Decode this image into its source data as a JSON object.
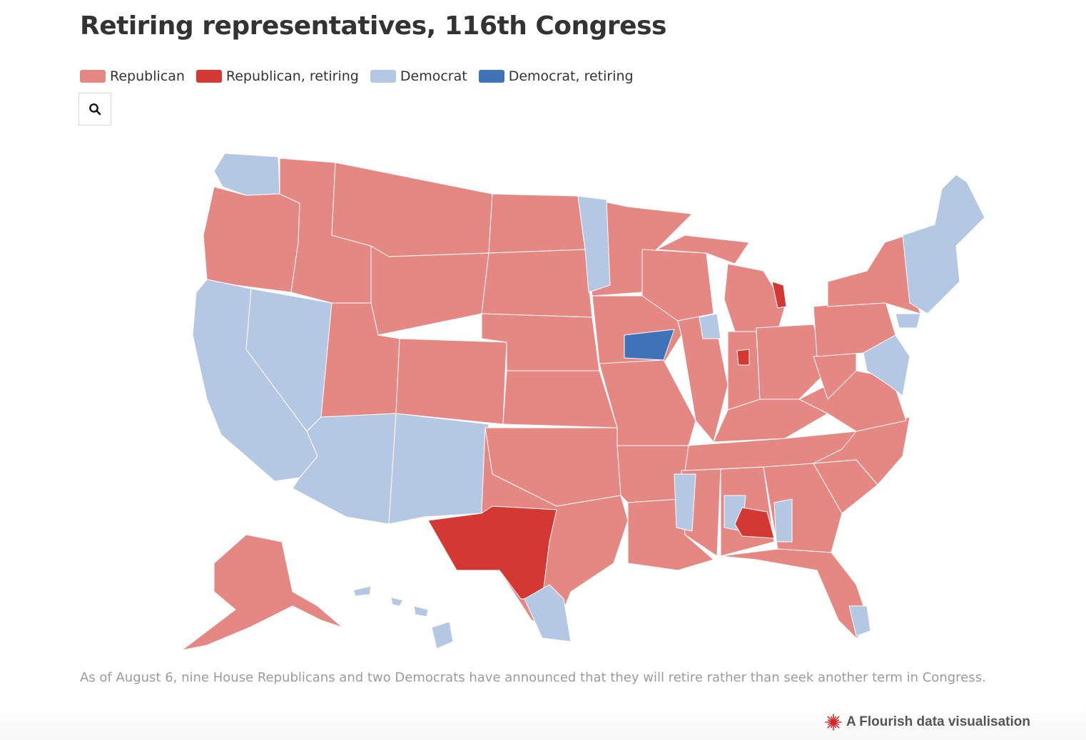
{
  "title": "Retiring representatives, 116th Congress",
  "legend": [
    {
      "label": "Republican",
      "color": "#e58782"
    },
    {
      "label": "Republican, retiring",
      "color": "#d43833"
    },
    {
      "label": "Democrat",
      "color": "#b4c7e3"
    },
    {
      "label": "Democrat, retiring",
      "color": "#3f73b8"
    }
  ],
  "search": {
    "icon": "search-icon"
  },
  "map": {
    "projection": "albers-usa",
    "regions": [
      {
        "name": "washington",
        "category": "Democrat"
      },
      {
        "name": "oregon",
        "category": "Republican"
      },
      {
        "name": "california",
        "category": "Democrat"
      },
      {
        "name": "nevada",
        "category": "Democrat"
      },
      {
        "name": "idaho",
        "category": "Republican"
      },
      {
        "name": "montana",
        "category": "Republican"
      },
      {
        "name": "wyoming",
        "category": "Republican"
      },
      {
        "name": "utah",
        "category": "Republican"
      },
      {
        "name": "arizona",
        "category": "Democrat"
      },
      {
        "name": "colorado",
        "category": "Republican"
      },
      {
        "name": "new-mexico",
        "category": "Democrat"
      },
      {
        "name": "north-dakota",
        "category": "Republican"
      },
      {
        "name": "south-dakota",
        "category": "Republican"
      },
      {
        "name": "nebraska",
        "category": "Republican"
      },
      {
        "name": "kansas",
        "category": "Republican"
      },
      {
        "name": "oklahoma",
        "category": "Republican"
      },
      {
        "name": "texas",
        "category": "Republican"
      },
      {
        "name": "texas-west",
        "category": "Republican, retiring"
      },
      {
        "name": "texas-south",
        "category": "Democrat"
      },
      {
        "name": "minnesota",
        "category": "Republican"
      },
      {
        "name": "minnesota-east",
        "category": "Democrat"
      },
      {
        "name": "iowa",
        "category": "Republican"
      },
      {
        "name": "iowa-east",
        "category": "Democrat, retiring"
      },
      {
        "name": "missouri",
        "category": "Republican"
      },
      {
        "name": "arkansas",
        "category": "Republican"
      },
      {
        "name": "louisiana",
        "category": "Republican"
      },
      {
        "name": "wisconsin",
        "category": "Republican"
      },
      {
        "name": "michigan-upper",
        "category": "Republican"
      },
      {
        "name": "michigan",
        "category": "Republican"
      },
      {
        "name": "michigan-thumb",
        "category": "Republican, retiring"
      },
      {
        "name": "illinois",
        "category": "Republican"
      },
      {
        "name": "chicago",
        "category": "Democrat"
      },
      {
        "name": "indiana",
        "category": "Republican"
      },
      {
        "name": "indiana-central",
        "category": "Republican, retiring"
      },
      {
        "name": "ohio",
        "category": "Republican"
      },
      {
        "name": "kentucky",
        "category": "Republican"
      },
      {
        "name": "tennessee",
        "category": "Republican"
      },
      {
        "name": "mississippi",
        "category": "Republican"
      },
      {
        "name": "mississippi-delta",
        "category": "Democrat"
      },
      {
        "name": "alabama",
        "category": "Republican"
      },
      {
        "name": "alabama-black-belt",
        "category": "Democrat"
      },
      {
        "name": "alabama-southeast",
        "category": "Republican, retiring"
      },
      {
        "name": "georgia",
        "category": "Republican"
      },
      {
        "name": "georgia-southwest",
        "category": "Democrat"
      },
      {
        "name": "florida",
        "category": "Republican"
      },
      {
        "name": "florida-south",
        "category": "Democrat"
      },
      {
        "name": "south-carolina",
        "category": "Republican"
      },
      {
        "name": "north-carolina",
        "category": "Republican"
      },
      {
        "name": "virginia",
        "category": "Republican"
      },
      {
        "name": "west-virginia",
        "category": "Republican"
      },
      {
        "name": "pennsylvania",
        "category": "Republican"
      },
      {
        "name": "new-york",
        "category": "Republican"
      },
      {
        "name": "new-york-city",
        "category": "Democrat"
      },
      {
        "name": "mid-atlantic",
        "category": "Democrat"
      },
      {
        "name": "new-england",
        "category": "Democrat"
      },
      {
        "name": "alaska",
        "category": "Republican"
      },
      {
        "name": "hawaii",
        "category": "Democrat"
      }
    ]
  },
  "caption": "As of August 6, nine House Republicans and two Democrats have announced that they will retire rather than seek another term in Congress.",
  "credit": {
    "label": "A Flourish data visualisation",
    "icon": "flourish-logo-icon"
  }
}
